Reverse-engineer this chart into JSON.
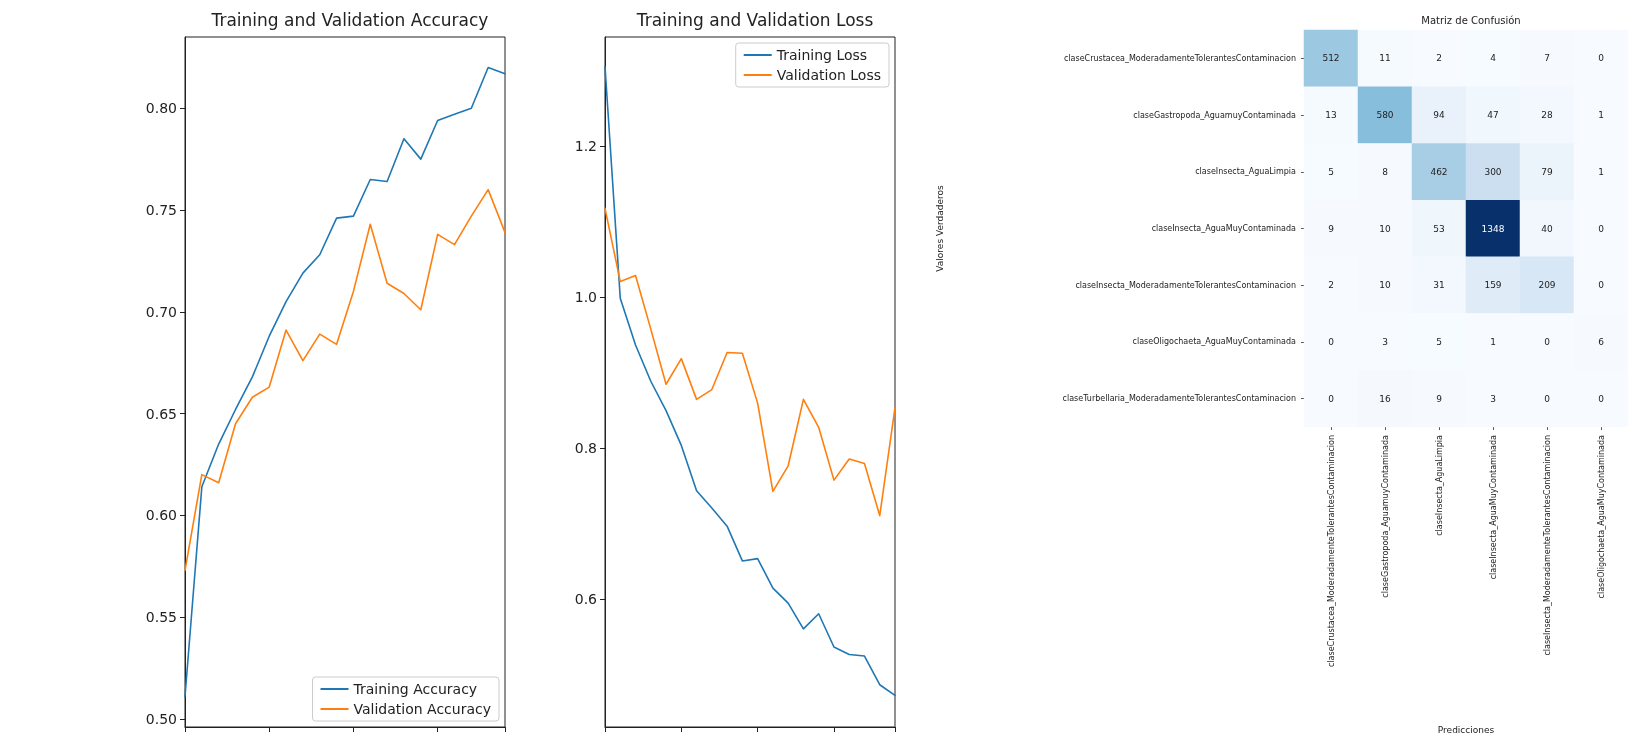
{
  "chart_data": [
    {
      "type": "line",
      "title": "Training and Validation Accuracy",
      "categories": [
        null,
        null,
        null,
        null,
        null,
        null,
        null,
        null,
        null,
        null,
        null,
        null,
        null,
        null,
        null,
        null,
        null,
        null,
        null,
        null
      ],
      "series": [
        {
          "name": "Training Accuracy",
          "color": "#1f77b4",
          "values": [
            0.511,
            0.614,
            0.635,
            0.652,
            0.668,
            0.688,
            0.705,
            0.719,
            0.728,
            0.746,
            0.747,
            0.765,
            0.764,
            0.785,
            0.775,
            0.794,
            0.797,
            0.8,
            0.82,
            0.817
          ]
        },
        {
          "name": "Validation Accuracy",
          "color": "#ff7f0e",
          "values": [
            0.573,
            0.62,
            0.616,
            0.645,
            0.658,
            0.663,
            0.691,
            0.676,
            0.689,
            0.684,
            0.71,
            0.743,
            0.714,
            0.709,
            0.701,
            0.738,
            0.733,
            0.747,
            0.76,
            0.739
          ]
        }
      ],
      "ylim": [
        0.496,
        0.835
      ],
      "yticks": [
        {
          "value": 0.5,
          "label": "0.50"
        },
        {
          "value": 0.55,
          "label": "0.55"
        },
        {
          "value": 0.6,
          "label": "0.60"
        },
        {
          "value": 0.65,
          "label": "0.65"
        },
        {
          "value": 0.7,
          "label": "0.70"
        },
        {
          "value": 0.75,
          "label": "0.75"
        },
        {
          "value": 0.8,
          "label": "0.80"
        }
      ],
      "tick_labels": "y",
      "legend": "bottom right",
      "grid": false,
      "marker": "none"
    },
    {
      "type": "line",
      "title": "Training and Validation Loss",
      "categories": [
        null,
        null,
        null,
        null,
        null,
        null,
        null,
        null,
        null,
        null,
        null,
        null,
        null,
        null,
        null,
        null,
        null,
        null,
        null,
        null
      ],
      "series": [
        {
          "name": "Training Loss",
          "color": "#1f77b4",
          "values": [
            1.306,
            0.999,
            0.937,
            0.889,
            0.85,
            0.804,
            0.744,
            0.721,
            0.697,
            0.651,
            0.654,
            0.615,
            0.595,
            0.561,
            0.581,
            0.537,
            0.527,
            0.525,
            0.487,
            0.473
          ]
        },
        {
          "name": "Validation Loss",
          "color": "#ff7f0e",
          "values": [
            1.118,
            1.021,
            1.029,
            0.958,
            0.885,
            0.919,
            0.865,
            0.878,
            0.927,
            0.926,
            0.86,
            0.743,
            0.777,
            0.865,
            0.828,
            0.758,
            0.786,
            0.78,
            0.711,
            0.854
          ]
        }
      ],
      "ylim": [
        0.431,
        1.345
      ],
      "yticks": [
        0.6,
        0.8,
        {
          "value": 1.0,
          "label": "1.0"
        },
        1.2
      ],
      "tick_labels": "y",
      "legend": "top right",
      "grid": false,
      "marker": "none"
    },
    {
      "type": "heatmap",
      "title": "Matriz de Confusión",
      "xlabel": "Predicciones",
      "ylabel": "Valores Verdaderos",
      "categories": [
        "claseCrustacea_ModeradamenteTolerantesContaminacion",
        "claseGastropoda_AguamuyContaminada",
        "claseInsecta_AguaLimpia",
        "claseInsecta_AguaMuyContaminada",
        "claseInsecta_ModeradamenteTolerantesContaminacion",
        "claseOligochaeta_AguaMuyContaminada"
      ],
      "y_categories": [
        "claseCrustacea_ModeradamenteTolerantesContaminacion",
        "claseGastropoda_AguamuyContaminada",
        "claseInsecta_AguaLimpia",
        "claseInsecta_AguaMuyContaminada",
        "claseInsecta_ModeradamenteTolerantesContaminacion",
        "claseOligochaeta_AguaMuyContaminada",
        "claseTurbellaria_ModeradamenteTolerantesContaminacion"
      ],
      "cells": [
        [
          512,
          11,
          2,
          4,
          7,
          0
        ],
        [
          13,
          580,
          94,
          47,
          28,
          1
        ],
        [
          5,
          8,
          462,
          300,
          79,
          1
        ],
        [
          9,
          10,
          53,
          1348,
          40,
          0
        ],
        [
          2,
          10,
          31,
          159,
          209,
          0
        ],
        [
          0,
          3,
          5,
          1,
          0,
          6
        ],
        [
          0,
          16,
          9,
          3,
          0,
          0
        ]
      ],
      "data_labels": true
    }
  ]
}
